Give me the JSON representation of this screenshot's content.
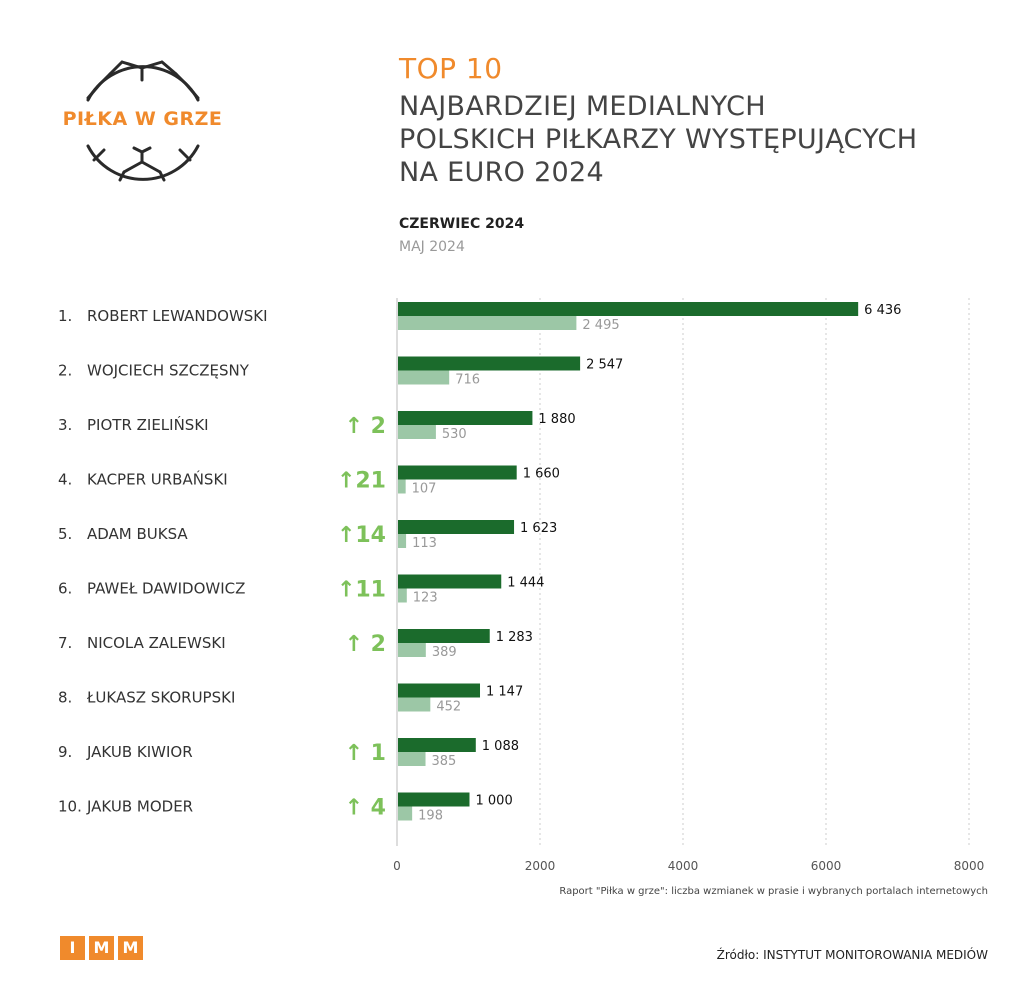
{
  "logo": {
    "text": "PIŁKA W GRZE",
    "icon": "soccer-ball-icon"
  },
  "title": {
    "top": "TOP 10",
    "lines": [
      "NAJBARDZIEJ MEDIALNYCH",
      "POLSKICH PIŁKARZY WYSTĘPUJĄCYCH",
      "NA EURO 2024"
    ]
  },
  "legend": {
    "current": "CZERWIEC 2024",
    "previous": "MAJ 2024"
  },
  "colors": {
    "current": "#1b6b2c",
    "previous": "#9cc7a6",
    "accent": "#f08a2c",
    "arrow": "#7dc15a"
  },
  "chart_data": {
    "type": "bar",
    "orientation": "horizontal",
    "categories": [
      "ROBERT LEWANDOWSKI",
      "WOJCIECH SZCZĘSNY",
      "PIOTR ZIELIŃSKI",
      "KACPER URBAŃSKI",
      "ADAM BUKSA",
      "PAWEŁ DAWIDOWICZ",
      "NICOLA ZALEWSKI",
      "ŁUKASZ SKORUPSKI",
      "JAKUB KIWIOR",
      "JAKUB MODER"
    ],
    "ranks": [
      "1.",
      "2.",
      "3.",
      "4.",
      "5.",
      "6.",
      "7.",
      "8.",
      "9.",
      "10."
    ],
    "changes": [
      "",
      "",
      "↑ 2",
      "↑21",
      "↑14",
      "↑11",
      "↑ 2",
      "",
      "↑ 1",
      "↑ 4"
    ],
    "series": [
      {
        "name": "CZERWIEC 2024",
        "values": [
          6436,
          2547,
          1880,
          1660,
          1623,
          1444,
          1283,
          1147,
          1088,
          1000
        ],
        "labels": [
          "6 436",
          "2 547",
          "1 880",
          "1 660",
          "1 623",
          "1 444",
          "1 283",
          "1 147",
          "1 088",
          "1 000"
        ]
      },
      {
        "name": "MAJ 2024",
        "values": [
          2495,
          716,
          530,
          107,
          113,
          123,
          389,
          452,
          385,
          198
        ],
        "labels": [
          "2 495",
          "716",
          "530",
          "107",
          "113",
          "123",
          "389",
          "452",
          "385",
          "198"
        ]
      }
    ],
    "xlim": [
      0,
      8000
    ],
    "xticks": [
      0,
      2000,
      4000,
      6000,
      8000
    ],
    "xtick_labels": [
      "0",
      "2000",
      "4000",
      "6000",
      "8000"
    ],
    "grid": "vertical-dotted"
  },
  "footnote": "Raport \"Piłka w grze\": liczba wzmianek w prasie i wybranych portalach internetowych",
  "brand": {
    "letters": [
      "I",
      "M",
      "M"
    ]
  },
  "source": "Źródło: INSTYTUT MONITOROWANIA MEDIÓW"
}
